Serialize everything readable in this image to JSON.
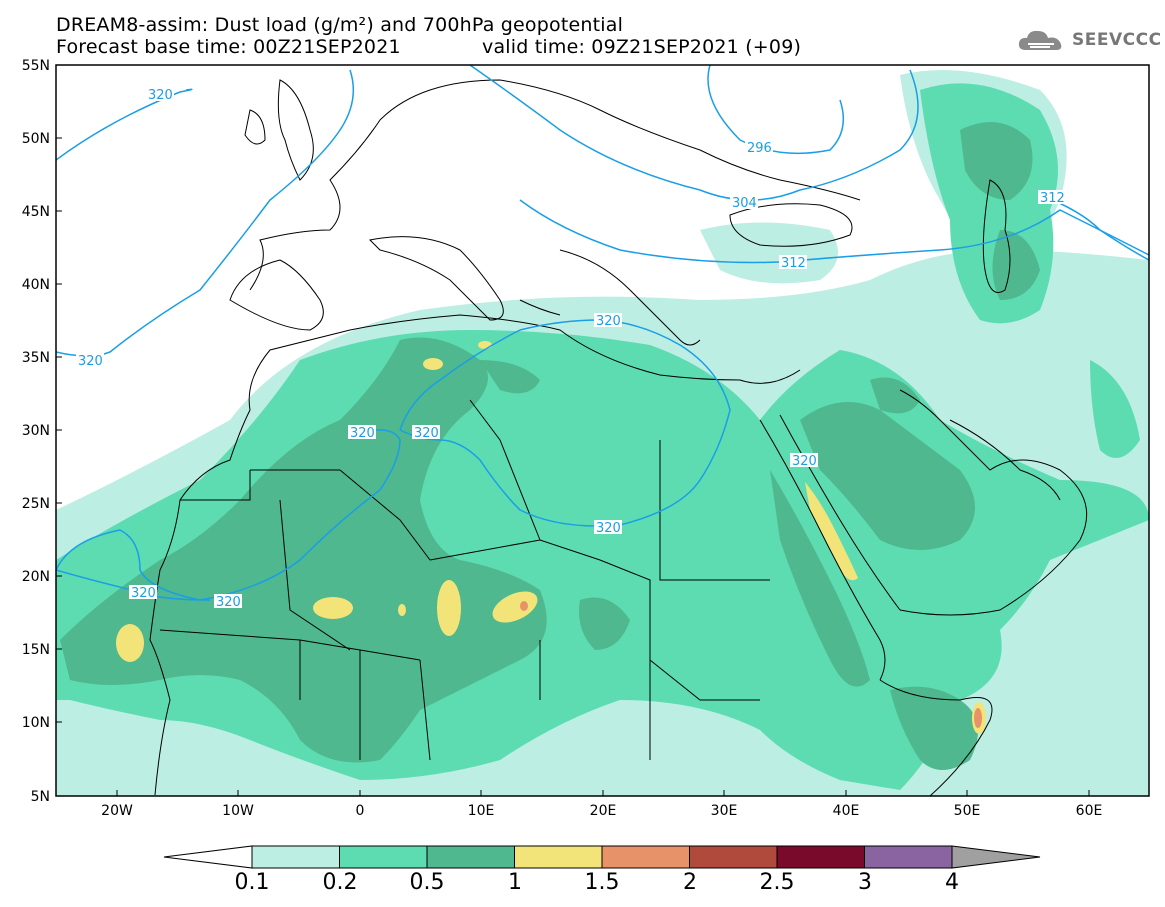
{
  "title_line1": "DREAM8-assim: Dust load (g/m²) and 700hPa geopotential",
  "title_line2_base": "Forecast base time: 00Z21SEP2021",
  "title_line2_valid": "valid time: 09Z21SEP2021 (+09)",
  "logo_text": "SEEVCCC",
  "latitude_labels": [
    "55N",
    "50N",
    "45N",
    "40N",
    "35N",
    "30N",
    "25N",
    "20N",
    "15N",
    "10N",
    "5N"
  ],
  "longitude_labels": [
    "20W",
    "10W",
    "0",
    "10E",
    "20E",
    "30E",
    "40E",
    "50E",
    "60E"
  ],
  "contour_labels": [
    "320",
    "320",
    "296",
    "304",
    "312",
    "312",
    "320",
    "320",
    "320",
    "320",
    "320",
    "320",
    "320"
  ],
  "colorbar": {
    "ticks": [
      "0.1",
      "0.2",
      "0.5",
      "1",
      "1.5",
      "2",
      "2.5",
      "3",
      "4"
    ],
    "colors": [
      "#bdeee3",
      "#5ddcb2",
      "#4fb88e",
      "#f3e47a",
      "#e8926a",
      "#b04a3c",
      "#7a0a2c",
      "#8a64a0"
    ]
  },
  "colors": {
    "land_light": "#bdeee3",
    "land_mid": "#5ddcb2",
    "land_dark": "#4fb88e",
    "yellow": "#f3e47a",
    "orange": "#e8926a",
    "contour": "#1a9ee6",
    "coast": "#000000"
  }
}
